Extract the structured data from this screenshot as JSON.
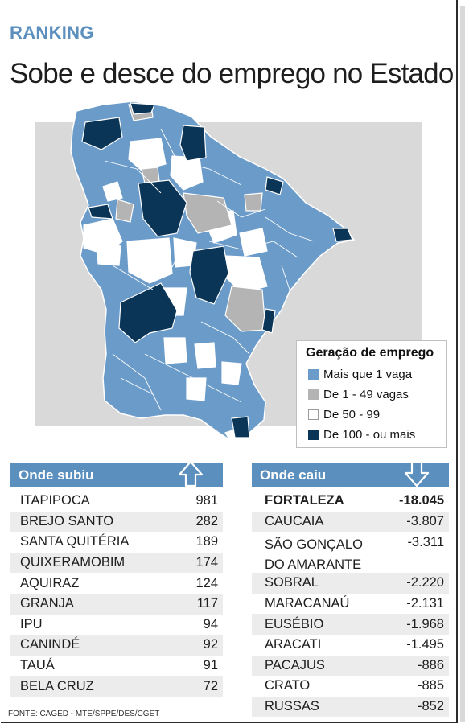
{
  "header": {
    "kicker": "RANKING",
    "title": "Sobe e desce do emprego no Estado"
  },
  "colors": {
    "accent": "#5b8fbe",
    "mais_que_1": "#6b9bc9",
    "de_1_49": "#b4b4b4",
    "de_50_99": "#ffffff",
    "de_100_mais": "#0b3557"
  },
  "legend": {
    "title": "Geração de emprego",
    "items": [
      {
        "label": "Mais que 1 vaga",
        "color": "#6b9bc9"
      },
      {
        "label": "De 1 - 49 vagas",
        "color": "#b4b4b4"
      },
      {
        "label": "De 50 - 99",
        "color": "#ffffff"
      },
      {
        "label": "De 100 - ou mais",
        "color": "#0b3557"
      }
    ]
  },
  "onde_subiu": {
    "title": "Onde subiu",
    "arrow_icon": "up-arrow-icon",
    "rows": [
      {
        "name": "ITAPIPOCA",
        "value": "981"
      },
      {
        "name": "BREJO SANTO",
        "value": "282"
      },
      {
        "name": "SANTA QUITÉRIA",
        "value": "189"
      },
      {
        "name": "QUIXERAMOBIM",
        "value": "174"
      },
      {
        "name": "AQUIRAZ",
        "value": "124"
      },
      {
        "name": "GRANJA",
        "value": "117"
      },
      {
        "name": "IPU",
        "value": "94"
      },
      {
        "name": "CANINDÉ",
        "value": "92"
      },
      {
        "name": "TAUÁ",
        "value": "91"
      },
      {
        "name": "BELA CRUZ",
        "value": "72"
      }
    ]
  },
  "onde_caiu": {
    "title": "Onde caiu",
    "arrow_icon": "down-arrow-icon",
    "rows": [
      {
        "name": "FORTALEZA",
        "value": "-18.045"
      },
      {
        "name": "CAUCAIA",
        "value": "-3.807"
      },
      {
        "name": "SÃO GONÇALO DO AMARANTE",
        "value": "-3.311"
      },
      {
        "name": "SOBRAL",
        "value": "-2.220"
      },
      {
        "name": "MARACANAÚ",
        "value": "-2.131"
      },
      {
        "name": "EUSÉBIO",
        "value": "-1.968"
      },
      {
        "name": "ARACATI",
        "value": "-1.495"
      },
      {
        "name": "PACAJUS",
        "value": "-886"
      },
      {
        "name": "CRATO",
        "value": "-885"
      },
      {
        "name": "RUSSAS",
        "value": "-852"
      }
    ]
  },
  "source": "FONTE: CAGED - MTE/SPPE/DES/CGET"
}
